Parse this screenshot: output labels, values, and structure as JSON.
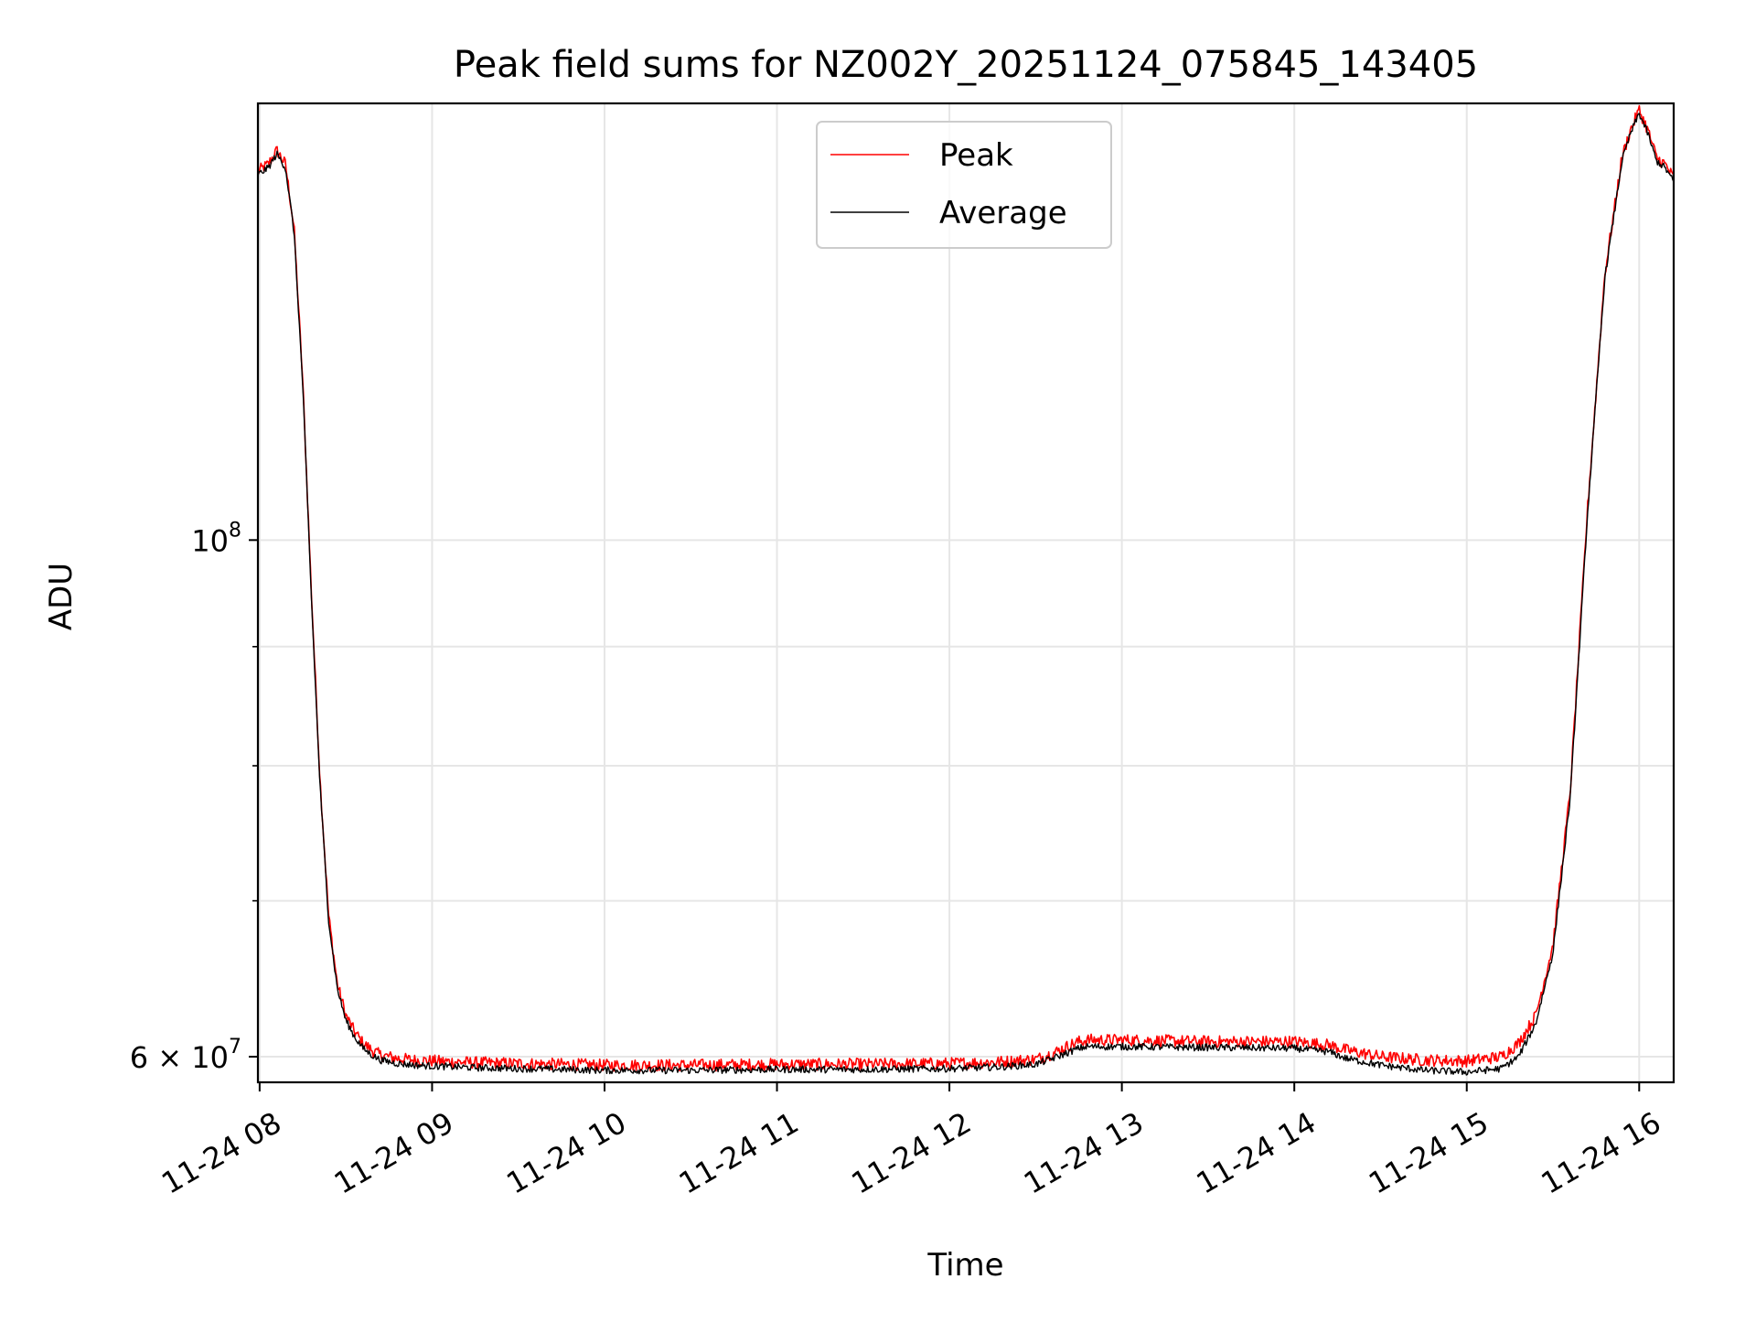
{
  "chart_data": {
    "type": "line",
    "title": "Peak field sums for NZ002Y_20251124_075845_143405",
    "xlabel": "Time",
    "ylabel": "ADU",
    "yscale": "log",
    "xlim_hours": [
      7.99,
      16.2
    ],
    "ylim": [
      58500000,
      154000000
    ],
    "x_ticks": [
      {
        "hour": 8,
        "label": "11-24 08"
      },
      {
        "hour": 9,
        "label": "11-24 09"
      },
      {
        "hour": 10,
        "label": "11-24 10"
      },
      {
        "hour": 11,
        "label": "11-24 11"
      },
      {
        "hour": 12,
        "label": "11-24 12"
      },
      {
        "hour": 13,
        "label": "11-24 13"
      },
      {
        "hour": 14,
        "label": "11-24 14"
      },
      {
        "hour": 15,
        "label": "11-24 15"
      },
      {
        "hour": 16,
        "label": "11-24 16"
      }
    ],
    "y_major_ticks": [
      {
        "value": 100000000,
        "base": "10",
        "exp": "8"
      },
      {
        "value": 60000000,
        "base": "6 × 10",
        "exp": "7"
      }
    ],
    "y_minor_ticks": [
      70000000,
      80000000,
      90000000
    ],
    "legend": {
      "position": "top-center"
    },
    "grid": true,
    "colors": {
      "peak": "#ff0000",
      "average": "#000000",
      "grid": "#e6e6e6"
    },
    "series": [
      {
        "name": "Peak",
        "color": "#ff0000",
        "x_hours": [
          7.99,
          8.05,
          8.1,
          8.15,
          8.2,
          8.25,
          8.3,
          8.35,
          8.4,
          8.45,
          8.5,
          8.55,
          8.6,
          8.65,
          8.7,
          8.8,
          8.9,
          9.0,
          9.25,
          9.5,
          9.75,
          10.0,
          10.5,
          11.0,
          11.5,
          12.0,
          12.3,
          12.5,
          12.6,
          12.7,
          12.75,
          12.8,
          13.0,
          13.5,
          14.0,
          14.2,
          14.3,
          14.5,
          14.75,
          15.0,
          15.2,
          15.3,
          15.4,
          15.5,
          15.6,
          15.7,
          15.8,
          15.9,
          15.95,
          16.0,
          16.05,
          16.1,
          16.15,
          16.2
        ],
        "values": [
          144000000,
          145000000,
          147000000,
          145000000,
          136000000,
          117000000,
          95000000,
          79000000,
          69000000,
          64500000,
          62500000,
          61500000,
          60800000,
          60400000,
          60100000,
          59900000,
          59800000,
          59750000,
          59650000,
          59600000,
          59550000,
          59500000,
          59500000,
          59550000,
          59550000,
          59600000,
          59700000,
          59850000,
          60200000,
          60700000,
          60900000,
          61000000,
          61000000,
          60900000,
          60900000,
          60700000,
          60400000,
          60000000,
          59800000,
          59750000,
          60000000,
          60800000,
          62500000,
          67000000,
          78000000,
          103000000,
          130000000,
          146000000,
          150000000,
          153000000,
          150000000,
          146000000,
          145000000,
          143000000
        ]
      },
      {
        "name": "Average",
        "color": "#000000",
        "x_hours": [
          7.99,
          8.05,
          8.1,
          8.15,
          8.2,
          8.25,
          8.3,
          8.35,
          8.4,
          8.45,
          8.5,
          8.55,
          8.6,
          8.65,
          8.7,
          8.8,
          8.9,
          9.0,
          9.25,
          9.5,
          9.75,
          10.0,
          10.5,
          11.0,
          11.5,
          12.0,
          12.3,
          12.5,
          12.6,
          12.7,
          12.75,
          12.8,
          13.0,
          13.5,
          14.0,
          14.2,
          14.3,
          14.5,
          14.75,
          15.0,
          15.2,
          15.3,
          15.4,
          15.5,
          15.6,
          15.7,
          15.8,
          15.9,
          15.95,
          16.0,
          16.05,
          16.1,
          16.15,
          16.2
        ],
        "values": [
          143500000,
          144500000,
          146500000,
          144500000,
          135500000,
          116500000,
          94500000,
          78500000,
          68700000,
          64200000,
          62200000,
          61200000,
          60500000,
          60100000,
          59800000,
          59600000,
          59500000,
          59450000,
          59350000,
          59300000,
          59250000,
          59200000,
          59200000,
          59250000,
          59250000,
          59300000,
          59400000,
          59550000,
          59900000,
          60300000,
          60500000,
          60600000,
          60600000,
          60550000,
          60500000,
          60300000,
          59900000,
          59500000,
          59200000,
          59100000,
          59300000,
          60000000,
          62000000,
          66500000,
          77500000,
          102500000,
          129500000,
          145500000,
          149500000,
          152500000,
          149500000,
          145500000,
          144500000,
          142500000
        ]
      }
    ]
  }
}
